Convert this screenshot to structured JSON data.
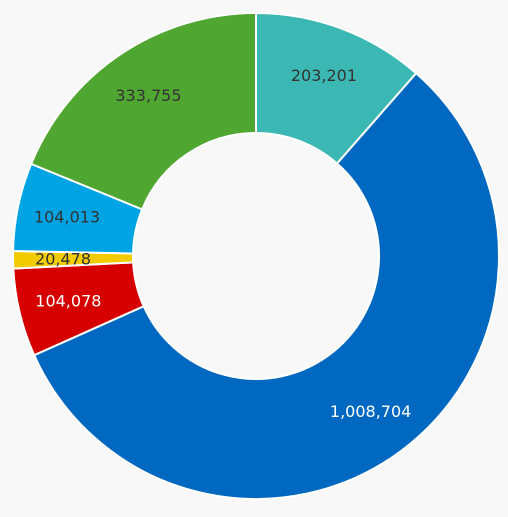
{
  "chart_data": {
    "type": "pie",
    "style": "donut",
    "categories": [
      "",
      "",
      "",
      "",
      "",
      ""
    ],
    "values": [
      203201,
      1008704,
      104078,
      20478,
      104013,
      333755
    ],
    "labels": [
      "203,201",
      "1,008,704",
      "104,078",
      "20,478",
      "104,013",
      "333,755"
    ],
    "colors": [
      "#3bb8b3",
      "#0068c0",
      "#d60000",
      "#f2cc00",
      "#00a4e4",
      "#4fa630"
    ],
    "label_colors": [
      "#333333",
      "#ffffff",
      "#ffffff",
      "#333333",
      "#333333",
      "#333333"
    ],
    "start_angle": "12 o'clock",
    "direction": "clockwise",
    "legend": "none",
    "title": ""
  }
}
